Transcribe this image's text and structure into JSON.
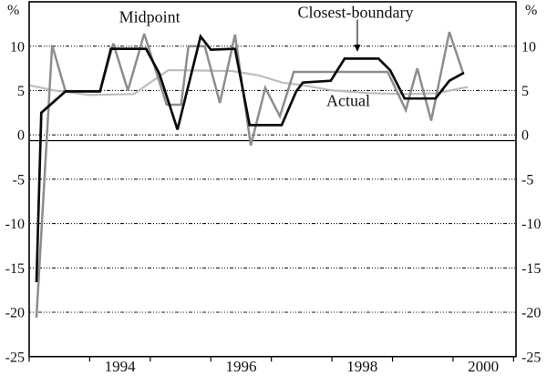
{
  "chart_data": {
    "type": "line",
    "title": "",
    "unit_left": "%",
    "unit_right": "%",
    "xlim": [
      1993.0,
      2001.04
    ],
    "ylim": [
      -25,
      15
    ],
    "grid": "dotted-horizontal",
    "legend_position": "inline-annotations",
    "yticks": [
      {
        "value": 10,
        "label": "10"
      },
      {
        "value": 5,
        "label": "5"
      },
      {
        "value": 0,
        "label": "0"
      },
      {
        "value": -5,
        "label": "-5"
      },
      {
        "value": -10,
        "label": "-10"
      },
      {
        "value": -15,
        "label": "-15"
      },
      {
        "value": -20,
        "label": "-20"
      },
      {
        "value": -25,
        "label": "-25"
      }
    ],
    "x_year_ticks": [
      1993,
      1994,
      1995,
      1996,
      1997,
      1998,
      1999,
      2000,
      2001
    ],
    "xtick_labels": [
      {
        "center_year": 1994.5,
        "label": "1994"
      },
      {
        "center_year": 1996.5,
        "label": "1996"
      },
      {
        "center_year": 1998.5,
        "label": "1998"
      },
      {
        "center_year": 2000.5,
        "label": "2000"
      }
    ],
    "zero_line": {
      "value": -0.65,
      "style": "solid",
      "color": "#000000"
    },
    "series": [
      {
        "name": "Actual",
        "color": "#bdbdbd",
        "stroke_width": 2.2,
        "points": [
          [
            1993.0,
            5.6
          ],
          [
            1993.42,
            5.0
          ],
          [
            1993.99,
            4.5
          ],
          [
            1994.73,
            4.6
          ],
          [
            1995.0,
            5.9
          ],
          [
            1995.3,
            7.3
          ],
          [
            1996.36,
            7.2
          ],
          [
            1996.8,
            6.7
          ],
          [
            1997.18,
            5.9
          ],
          [
            1997.52,
            5.6
          ],
          [
            1998.01,
            5.0
          ],
          [
            1998.61,
            4.7
          ],
          [
            1999.22,
            4.6
          ],
          [
            1999.74,
            4.7
          ],
          [
            2000.24,
            5.4
          ]
        ]
      },
      {
        "name": "Midpoint",
        "color": "#8d8d8d",
        "stroke_width": 2.5,
        "points": [
          [
            1993.12,
            -20.6
          ],
          [
            1993.38,
            10.1
          ],
          [
            1993.6,
            4.9
          ],
          [
            1994.17,
            4.9
          ],
          [
            1994.39,
            10.3
          ],
          [
            1994.63,
            5.0
          ],
          [
            1994.9,
            11.4
          ],
          [
            1995.27,
            3.4
          ],
          [
            1995.51,
            3.4
          ],
          [
            1995.63,
            10.0
          ],
          [
            1995.9,
            10.0
          ],
          [
            1996.15,
            3.6
          ],
          [
            1996.4,
            11.3
          ],
          [
            1996.66,
            -1.2
          ],
          [
            1996.9,
            5.3
          ],
          [
            1997.14,
            2.1
          ],
          [
            1997.37,
            7.1
          ],
          [
            1998.92,
            7.1
          ],
          [
            1999.22,
            2.8
          ],
          [
            1999.41,
            7.5
          ],
          [
            1999.64,
            1.6
          ],
          [
            1999.94,
            11.6
          ],
          [
            2000.17,
            6.9
          ]
        ]
      },
      {
        "name": "Closest-boundary",
        "color": "#0a0a0a",
        "stroke_width": 2.7,
        "points": [
          [
            1993.12,
            -16.6
          ],
          [
            1993.2,
            2.5
          ],
          [
            1993.6,
            4.9
          ],
          [
            1994.17,
            4.9
          ],
          [
            1994.35,
            9.7
          ],
          [
            1994.93,
            9.7
          ],
          [
            1995.15,
            6.9
          ],
          [
            1995.45,
            0.6
          ],
          [
            1995.83,
            11.1
          ],
          [
            1996.0,
            9.6
          ],
          [
            1996.4,
            9.7
          ],
          [
            1996.64,
            1.1
          ],
          [
            1997.17,
            1.1
          ],
          [
            1997.41,
            4.9
          ],
          [
            1997.52,
            5.9
          ],
          [
            1997.98,
            6.1
          ],
          [
            1998.21,
            8.6
          ],
          [
            1998.77,
            8.6
          ],
          [
            1998.96,
            7.3
          ],
          [
            1999.2,
            4.1
          ],
          [
            1999.71,
            4.1
          ],
          [
            1999.94,
            6.1
          ],
          [
            2000.18,
            7.0
          ]
        ]
      }
    ],
    "annotations": [
      {
        "id": "midpoint-label",
        "text": "Midpoint",
        "x": 1994.99,
        "y": 13.35,
        "font_size": 18
      },
      {
        "id": "closest-boundary-label",
        "text": "Closest-boundary",
        "x": 1998.39,
        "y": 13.87,
        "font_size": 18
      },
      {
        "id": "actual-label",
        "text": "Actual",
        "x": 1998.27,
        "y": 3.9,
        "font_size": 18
      }
    ],
    "arrow": {
      "x": 1998.42,
      "y_from": 13.0,
      "y_to": 9.35,
      "color": "#555555",
      "head_color": "#000000"
    }
  }
}
